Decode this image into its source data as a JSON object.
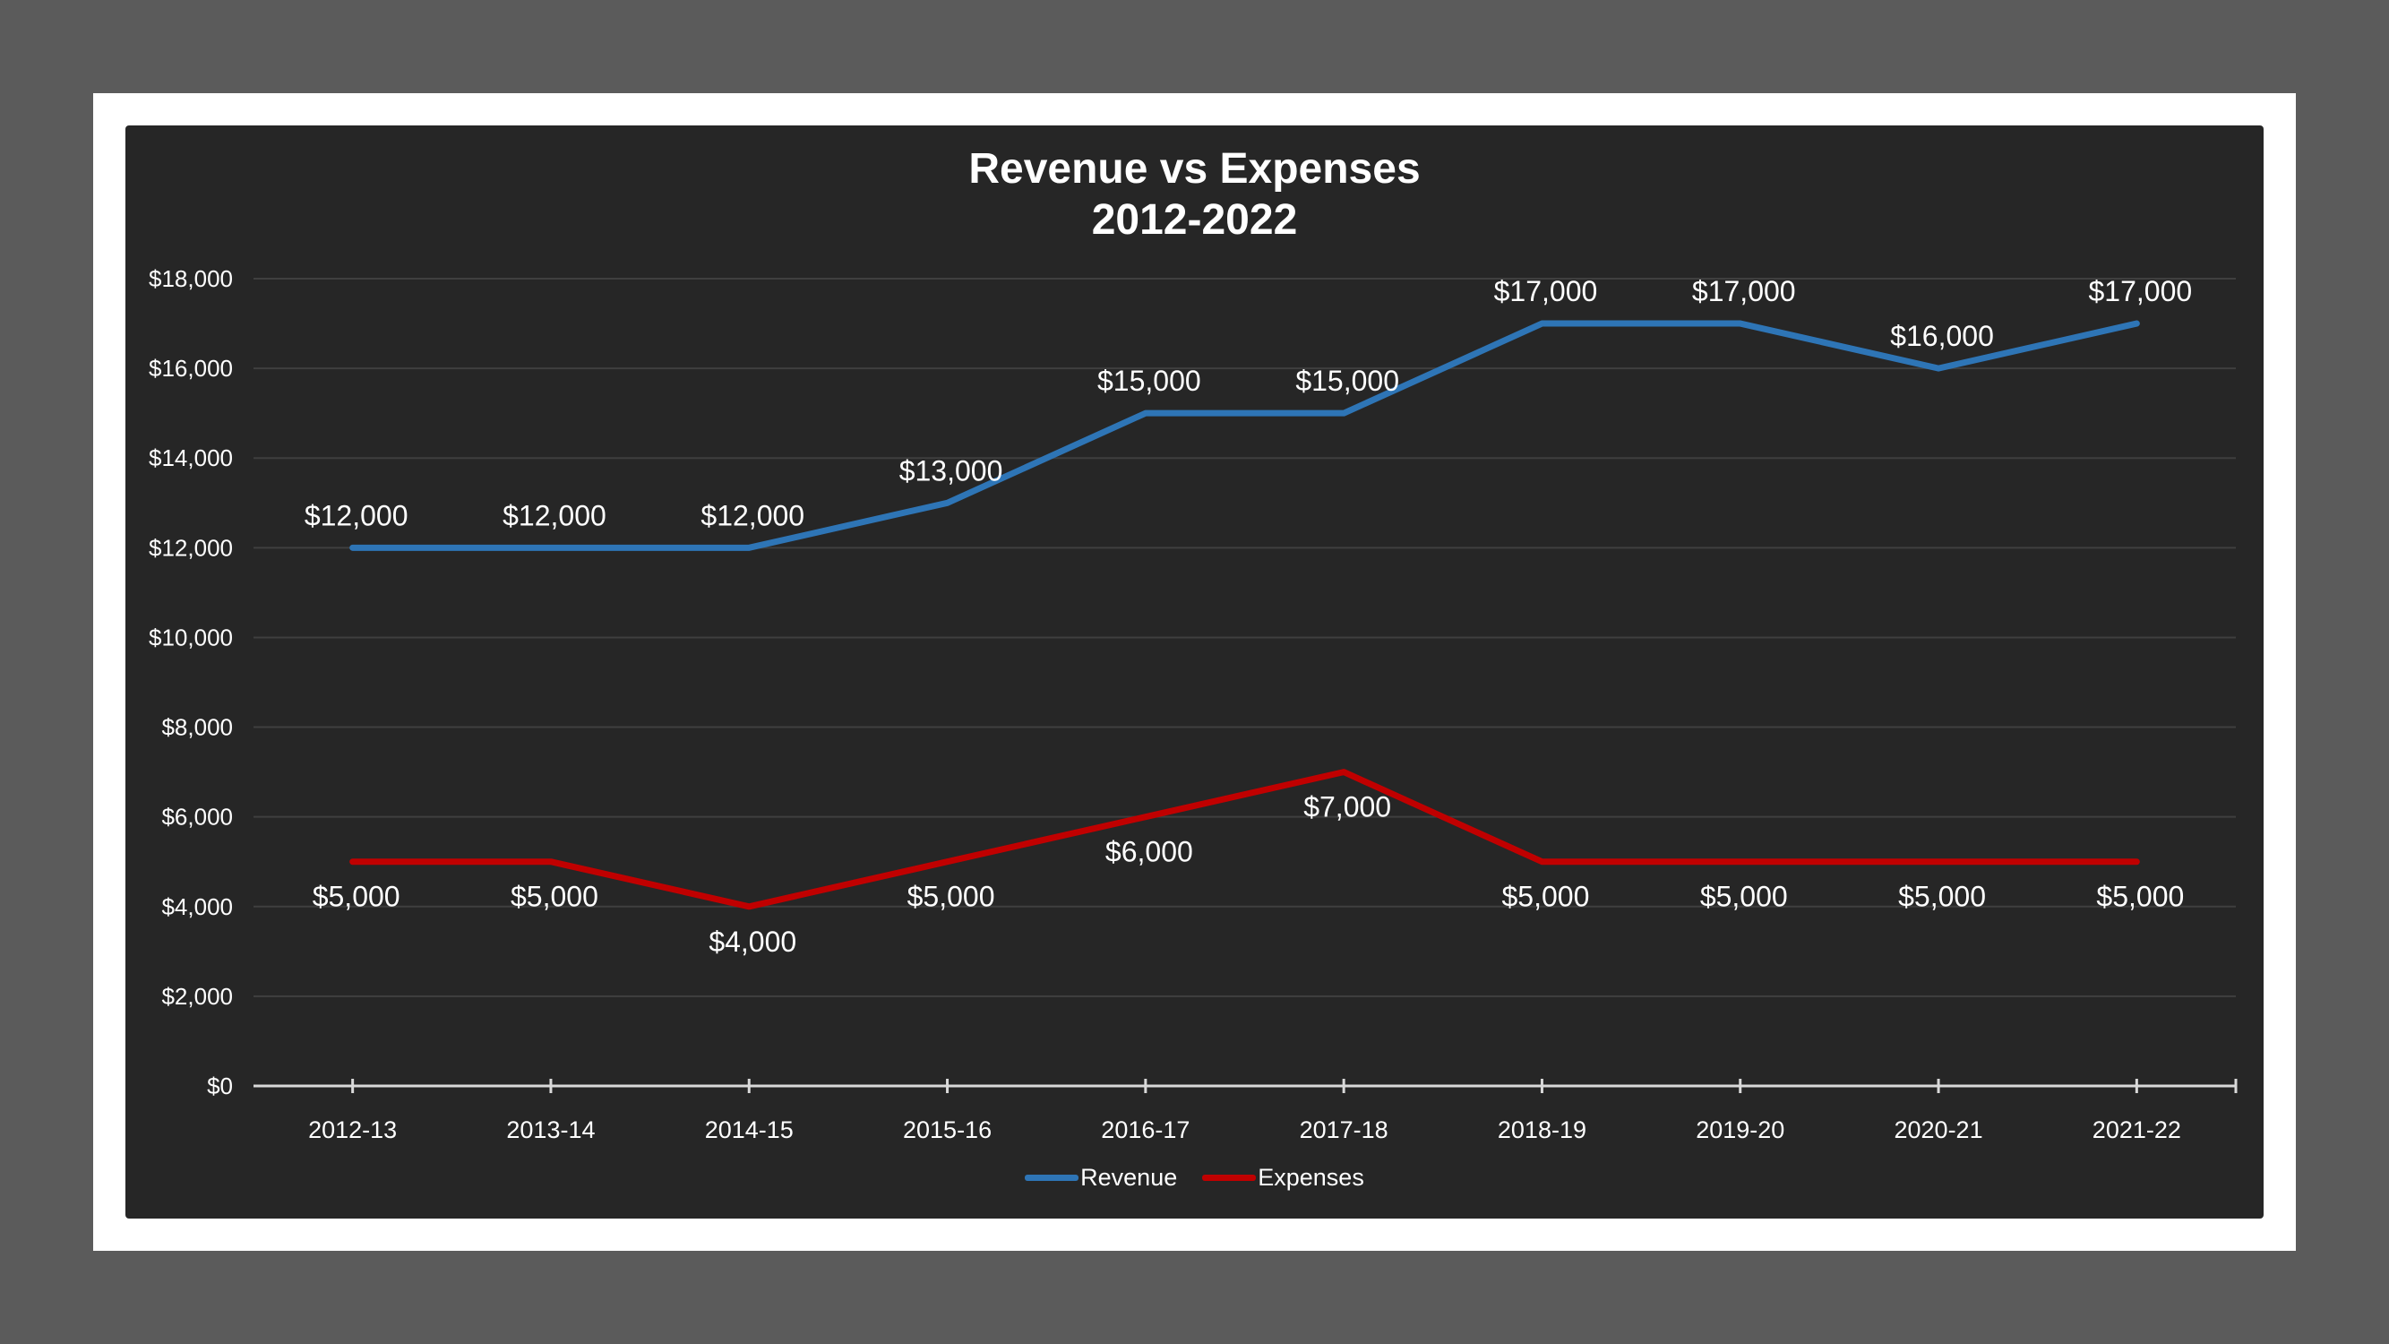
{
  "chart_data": {
    "type": "line",
    "title": [
      "Revenue vs Expenses",
      "2012-2022"
    ],
    "categories": [
      "2012-13",
      "2013-14",
      "2014-15",
      "2015-16",
      "2016-17",
      "2017-18",
      "2018-19",
      "2019-20",
      "2020-21",
      "2021-22"
    ],
    "series": [
      {
        "name": "Revenue",
        "color": "#2e75b6",
        "values": [
          12000,
          12000,
          12000,
          13000,
          15000,
          15000,
          17000,
          17000,
          16000,
          17000
        ],
        "labels": [
          "$12,000",
          "$12,000",
          "$12,000",
          "$13,000",
          "$15,000",
          "$15,000",
          "$17,000",
          "$17,000",
          "$16,000",
          "$17,000"
        ],
        "label_position": "above"
      },
      {
        "name": "Expenses",
        "color": "#c00000",
        "values": [
          5000,
          5000,
          4000,
          5000,
          6000,
          7000,
          5000,
          5000,
          5000,
          5000
        ],
        "labels": [
          "$5,000",
          "$5,000",
          "$4,000",
          "$5,000",
          "$6,000",
          "$7,000",
          "$5,000",
          "$5,000",
          "$5,000",
          "$5,000"
        ],
        "label_position": "below"
      }
    ],
    "ylim": [
      0,
      18000
    ],
    "yticks": [
      0,
      2000,
      4000,
      6000,
      8000,
      10000,
      12000,
      14000,
      16000,
      18000
    ],
    "ytick_labels": [
      "$0",
      "$2,000",
      "$4,000",
      "$6,000",
      "$8,000",
      "$10,000",
      "$12,000",
      "$14,000",
      "$16,000",
      "$18,000"
    ],
    "grid": true,
    "legend_position": "bottom",
    "background": "#262626",
    "gridline_color": "#3f3f3f",
    "axis_color": "#d9d9d9",
    "text_color": "#ffffff"
  }
}
